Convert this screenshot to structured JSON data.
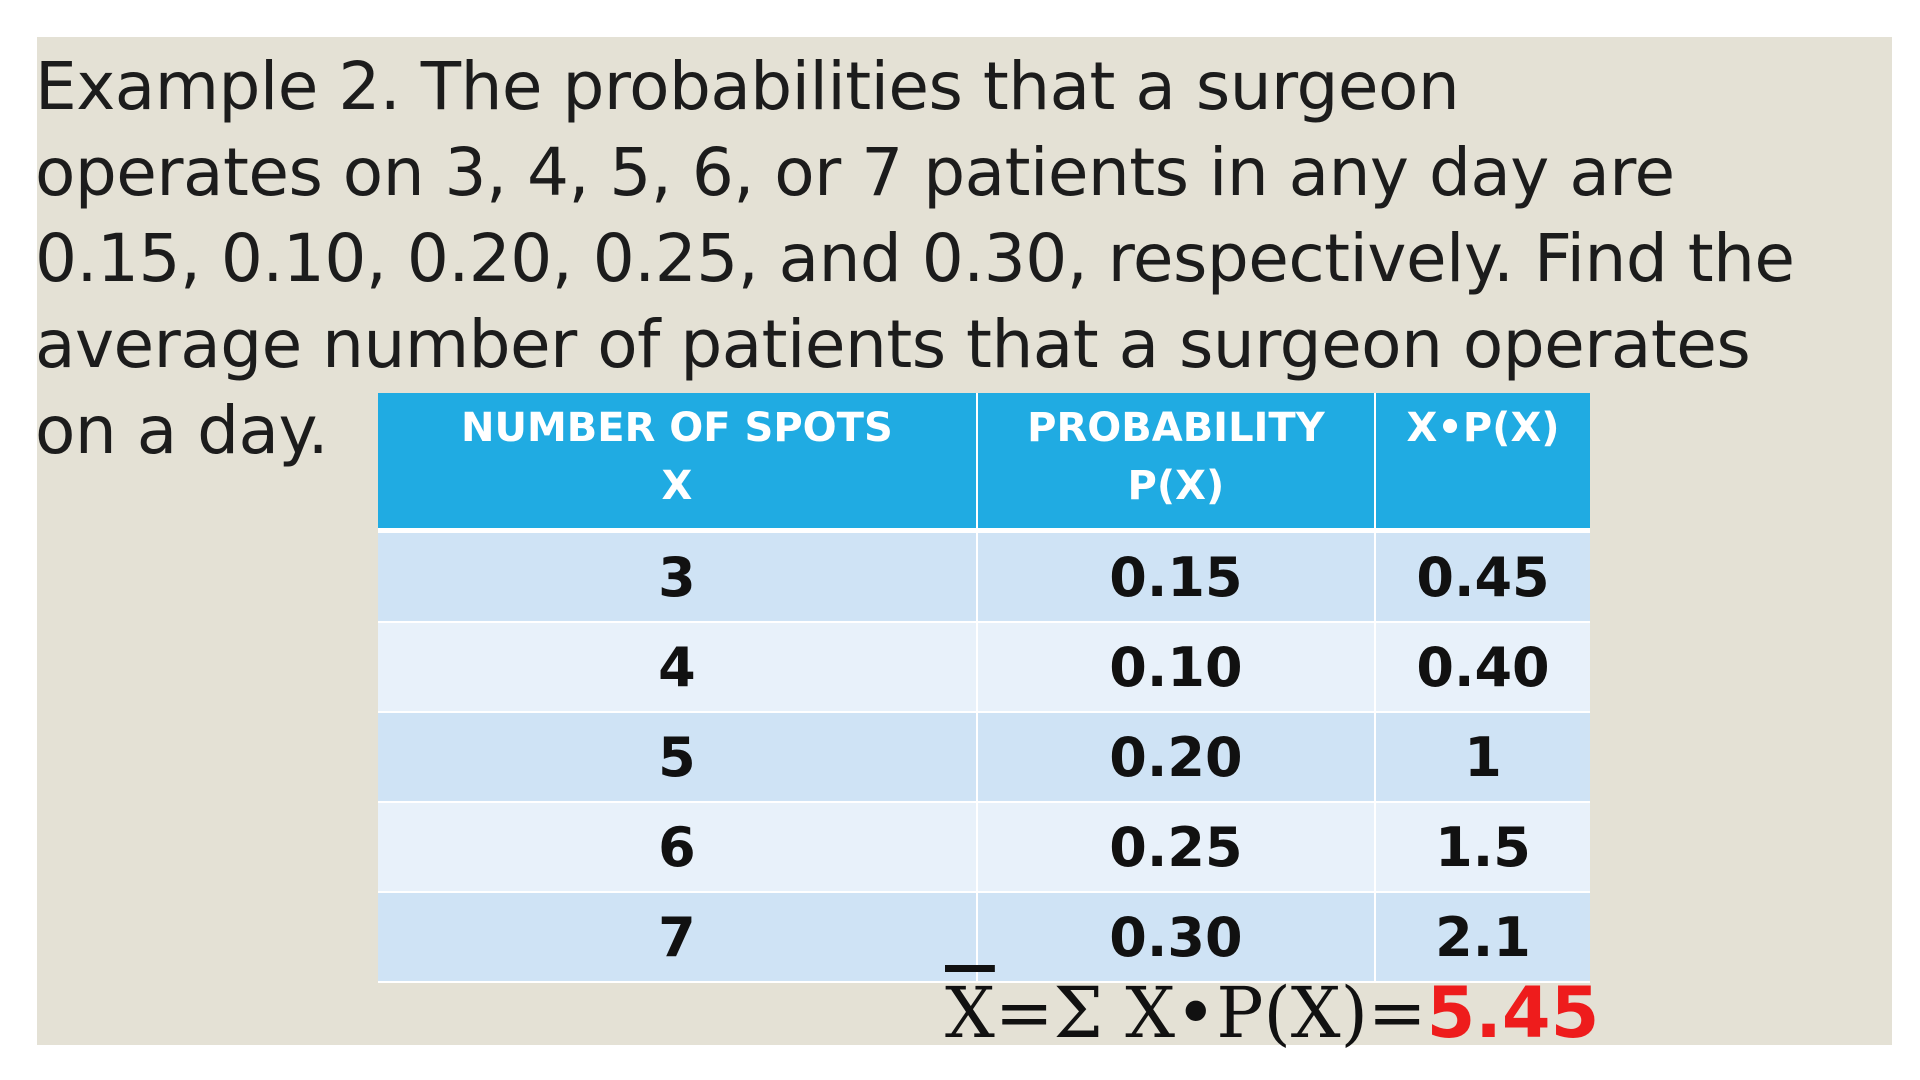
{
  "problem": {
    "text": "Example 2.     The probabilities that a surgeon\noperates on 3, 4, 5, 6, or 7 patients in any day are\n0.15, 0.10, 0.20, 0.25, and 0.30, respectively. Find the\naverage number of patients that a surgeon operates\non a day."
  },
  "table": {
    "headers": [
      "NUMBER OF SPOTS\nX",
      "PROBABILITY\nP(X)",
      "X•P(X)"
    ],
    "rows": [
      [
        "3",
        "0.15",
        "0.45"
      ],
      [
        "4",
        "0.10",
        "0.40"
      ],
      [
        "5",
        "0.20",
        "1"
      ],
      [
        "6",
        "0.25",
        "1.5"
      ],
      [
        "7",
        "0.30",
        "2.1"
      ]
    ]
  },
  "formula": {
    "symbol": "X",
    "expression": "=Σ X•P(X)=",
    "result": "5.45"
  },
  "colors": {
    "header": "#20abe2",
    "row_odd": "#cfe3f5",
    "row_even": "#e8f1fa",
    "result": "#ee1c1c",
    "slide_background": "#e4e1d5"
  }
}
